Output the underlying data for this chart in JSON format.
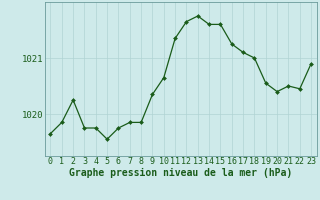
{
  "x": [
    0,
    1,
    2,
    3,
    4,
    5,
    6,
    7,
    8,
    9,
    10,
    11,
    12,
    13,
    14,
    15,
    16,
    17,
    18,
    19,
    20,
    21,
    22,
    23
  ],
  "y": [
    1019.65,
    1019.85,
    1020.25,
    1019.75,
    1019.75,
    1019.55,
    1019.75,
    1019.85,
    1019.85,
    1020.35,
    1020.65,
    1021.35,
    1021.65,
    1021.75,
    1021.6,
    1021.6,
    1021.25,
    1021.1,
    1021.0,
    1020.55,
    1020.4,
    1020.5,
    1020.45,
    1020.9
  ],
  "line_color": "#1a5c1a",
  "marker_color": "#1a5c1a",
  "bg_color": "#ceeaea",
  "grid_color": "#b0d4d4",
  "xlabel": "Graphe pression niveau de la mer (hPa)",
  "yticks": [
    1020,
    1021
  ],
  "ylim": [
    1019.25,
    1022.0
  ],
  "xlim": [
    -0.5,
    23.5
  ],
  "xlabel_fontsize": 7,
  "tick_fontsize": 6.5
}
